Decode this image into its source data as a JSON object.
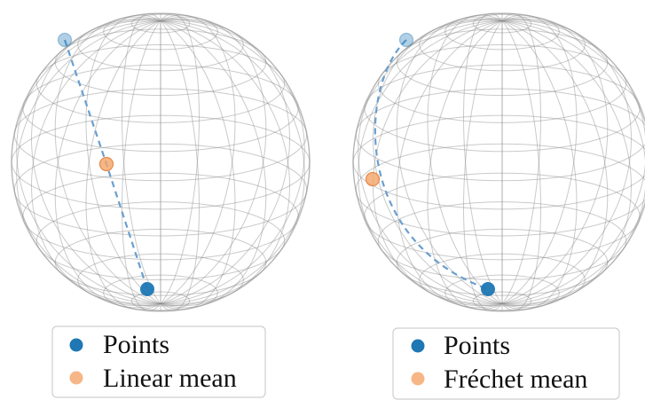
{
  "colors": {
    "points": "#1f77b4",
    "mean": "#f4a467",
    "mean_edge": "#e58a4a",
    "path": "#6a9fcf",
    "wire": "#8a8a8a"
  },
  "panels": [
    {
      "legend": {
        "points_label": "Points",
        "mean_label": "Linear mean"
      },
      "path_style": "straight-chord",
      "points": [
        {
          "role": "point-top",
          "emphasis": "faded"
        },
        {
          "role": "point-bottom",
          "emphasis": "solid"
        }
      ],
      "mean": {
        "role": "linear-mean"
      }
    },
    {
      "legend": {
        "points_label": "Points",
        "mean_label": "Fréchet mean"
      },
      "path_style": "geodesic-arc",
      "points": [
        {
          "role": "point-top",
          "emphasis": "faded"
        },
        {
          "role": "point-bottom",
          "emphasis": "solid"
        }
      ],
      "mean": {
        "role": "frechet-mean"
      }
    }
  ]
}
